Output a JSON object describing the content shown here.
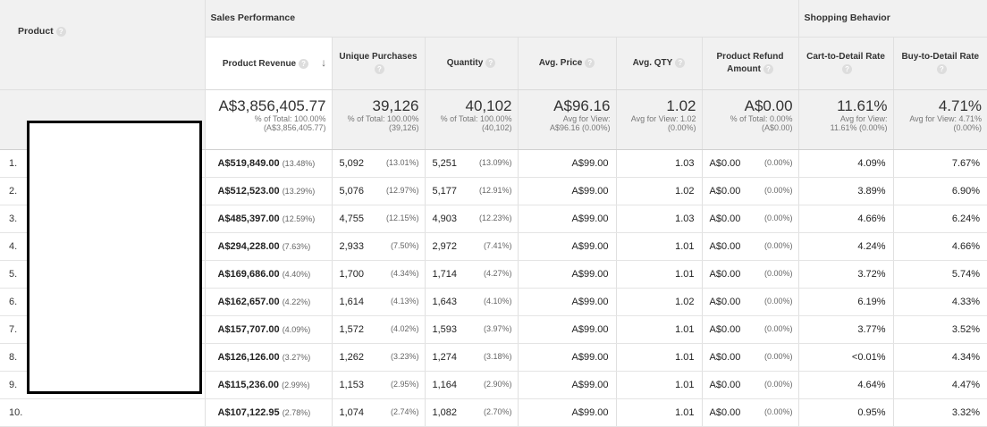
{
  "groups": {
    "sales": "Sales Performance",
    "shopping": "Shopping Behavior"
  },
  "product_header": "Product",
  "columns": [
    "Product Revenue",
    "Unique Purchases",
    "Quantity",
    "Avg. Price",
    "Avg. QTY",
    "Product Refund Amount",
    "Cart-to-Detail Rate",
    "Buy-to-Detail Rate"
  ],
  "totals": [
    {
      "big": "A$3,856,405.77",
      "l1": "% of Total: 100.00%",
      "l2": "(A$3,856,405.77)"
    },
    {
      "big": "39,126",
      "l1": "% of Total: 100.00%",
      "l2": "(39,126)"
    },
    {
      "big": "40,102",
      "l1": "% of Total: 100.00%",
      "l2": "(40,102)"
    },
    {
      "big": "A$96.16",
      "l1": "Avg for View:",
      "l2": "A$96.16 (0.00%)"
    },
    {
      "big": "1.02",
      "l1": "Avg for View: 1.02",
      "l2": "(0.00%)"
    },
    {
      "big": "A$0.00",
      "l1": "% of Total: 0.00%",
      "l2": "(A$0.00)"
    },
    {
      "big": "11.61%",
      "l1": "Avg for View:",
      "l2": "11.61% (0.00%)"
    },
    {
      "big": "4.71%",
      "l1": "Avg for View: 4.71%",
      "l2": "(0.00%)"
    }
  ],
  "rows": [
    {
      "idx": "1.",
      "rev": "A$519,849.00",
      "rev_pct": "(13.48%)",
      "up": "5,092",
      "up_pct": "(13.01%)",
      "qty": "5,251",
      "qty_pct": "(13.09%)",
      "price": "A$99.00",
      "avgqty": "1.03",
      "refund": "A$0.00",
      "refund_pct": "(0.00%)",
      "ctd": "4.09%",
      "btd": "7.67%"
    },
    {
      "idx": "2.",
      "rev": "A$512,523.00",
      "rev_pct": "(13.29%)",
      "up": "5,076",
      "up_pct": "(12.97%)",
      "qty": "5,177",
      "qty_pct": "(12.91%)",
      "price": "A$99.00",
      "avgqty": "1.02",
      "refund": "A$0.00",
      "refund_pct": "(0.00%)",
      "ctd": "3.89%",
      "btd": "6.90%"
    },
    {
      "idx": "3.",
      "rev": "A$485,397.00",
      "rev_pct": "(12.59%)",
      "up": "4,755",
      "up_pct": "(12.15%)",
      "qty": "4,903",
      "qty_pct": "(12.23%)",
      "price": "A$99.00",
      "avgqty": "1.03",
      "refund": "A$0.00",
      "refund_pct": "(0.00%)",
      "ctd": "4.66%",
      "btd": "6.24%"
    },
    {
      "idx": "4.",
      "rev": "A$294,228.00",
      "rev_pct": "(7.63%)",
      "up": "2,933",
      "up_pct": "(7.50%)",
      "qty": "2,972",
      "qty_pct": "(7.41%)",
      "price": "A$99.00",
      "avgqty": "1.01",
      "refund": "A$0.00",
      "refund_pct": "(0.00%)",
      "ctd": "4.24%",
      "btd": "4.66%"
    },
    {
      "idx": "5.",
      "rev": "A$169,686.00",
      "rev_pct": "(4.40%)",
      "up": "1,700",
      "up_pct": "(4.34%)",
      "qty": "1,714",
      "qty_pct": "(4.27%)",
      "price": "A$99.00",
      "avgqty": "1.01",
      "refund": "A$0.00",
      "refund_pct": "(0.00%)",
      "ctd": "3.72%",
      "btd": "5.74%"
    },
    {
      "idx": "6.",
      "rev": "A$162,657.00",
      "rev_pct": "(4.22%)",
      "up": "1,614",
      "up_pct": "(4.13%)",
      "qty": "1,643",
      "qty_pct": "(4.10%)",
      "price": "A$99.00",
      "avgqty": "1.02",
      "refund": "A$0.00",
      "refund_pct": "(0.00%)",
      "ctd": "6.19%",
      "btd": "4.33%"
    },
    {
      "idx": "7.",
      "rev": "A$157,707.00",
      "rev_pct": "(4.09%)",
      "up": "1,572",
      "up_pct": "(4.02%)",
      "qty": "1,593",
      "qty_pct": "(3.97%)",
      "price": "A$99.00",
      "avgqty": "1.01",
      "refund": "A$0.00",
      "refund_pct": "(0.00%)",
      "ctd": "3.77%",
      "btd": "3.52%"
    },
    {
      "idx": "8.",
      "rev": "A$126,126.00",
      "rev_pct": "(3.27%)",
      "up": "1,262",
      "up_pct": "(3.23%)",
      "qty": "1,274",
      "qty_pct": "(3.18%)",
      "price": "A$99.00",
      "avgqty": "1.01",
      "refund": "A$0.00",
      "refund_pct": "(0.00%)",
      "ctd": "<0.01%",
      "btd": "4.34%"
    },
    {
      "idx": "9.",
      "rev": "A$115,236.00",
      "rev_pct": "(2.99%)",
      "up": "1,153",
      "up_pct": "(2.95%)",
      "qty": "1,164",
      "qty_pct": "(2.90%)",
      "price": "A$99.00",
      "avgqty": "1.01",
      "refund": "A$0.00",
      "refund_pct": "(0.00%)",
      "ctd": "4.64%",
      "btd": "4.47%"
    },
    {
      "idx": "10.",
      "rev": "A$107,122.95",
      "rev_pct": "(2.78%)",
      "up": "1,074",
      "up_pct": "(2.74%)",
      "qty": "1,082",
      "qty_pct": "(2.70%)",
      "price": "A$99.00",
      "avgqty": "1.01",
      "refund": "A$0.00",
      "refund_pct": "(0.00%)",
      "ctd": "0.95%",
      "btd": "3.32%"
    }
  ]
}
